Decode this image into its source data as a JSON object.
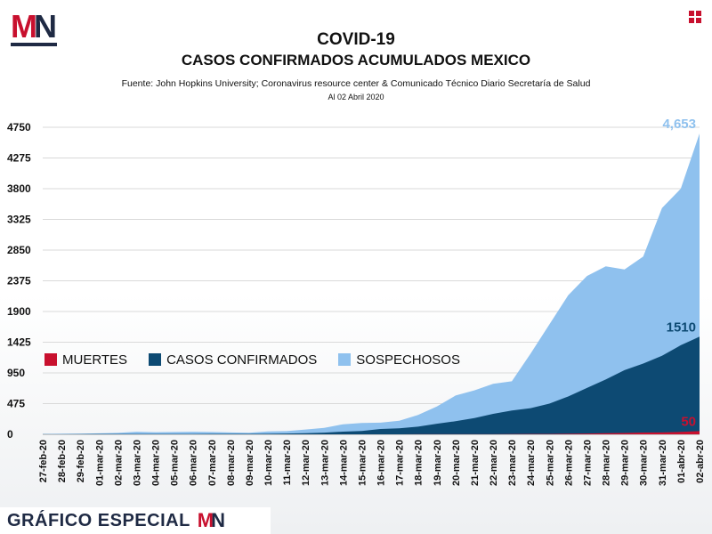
{
  "brand": {
    "logo_m": "M",
    "logo_n": "N",
    "footer_text": "GRÁFICO ESPECIAL",
    "colors": {
      "red": "#c8102e",
      "navy": "#1f2a44"
    }
  },
  "header": {
    "title_line1": "COVID-19",
    "title_line2": "CASOS CONFIRMADOS ACUMULADOS MEXICO",
    "source": "Fuente: John Hopkins University; Coronavirus resource center & Comunicado Técnico Diario Secretaría de Salud",
    "date": "Al 02 Abril 2020"
  },
  "chart_data": {
    "type": "area",
    "title": "",
    "xlabel": "",
    "ylabel": "",
    "ylim": [
      0,
      4750
    ],
    "yticks": [
      0,
      475,
      950,
      1425,
      1900,
      2375,
      2850,
      3325,
      3800,
      4275,
      4750
    ],
    "grid": true,
    "legend_position": "middle-left",
    "x": [
      "27-feb-20",
      "28-feb-20",
      "29-feb-20",
      "01-mar-20",
      "02-mar-20",
      "03-mar-20",
      "04-mar-20",
      "05-mar-20",
      "06-mar-20",
      "07-mar-20",
      "08-mar-20",
      "09-mar-20",
      "10-mar-20",
      "11-mar-20",
      "12-mar-20",
      "13-mar-20",
      "14-mar-20",
      "15-mar-20",
      "16-mar-20",
      "17-mar-20",
      "18-mar-20",
      "19-mar-20",
      "20-mar-20",
      "21-mar-20",
      "22-mar-20",
      "23-mar-20",
      "24-mar-20",
      "25-mar-20",
      "26-mar-20",
      "27-mar-20",
      "28-mar-20",
      "29-mar-20",
      "30-mar-20",
      "31-mar-20",
      "01-abr-20",
      "02-abr-20"
    ],
    "series": [
      {
        "name": "SOSPECHOSOS",
        "color": "#8fc1ee",
        "values": [
          5,
          8,
          10,
          15,
          22,
          40,
          33,
          36,
          40,
          36,
          29,
          24,
          44,
          50,
          75,
          100,
          155,
          175,
          180,
          210,
          300,
          430,
          600,
          680,
          780,
          820,
          1250,
          1700,
          2150,
          2450,
          2600,
          2550,
          2750,
          3500,
          3800,
          4653
        ]
      },
      {
        "name": "CASOS CONFIRMADOS",
        "color": "#0d4a73",
        "values": [
          1,
          2,
          4,
          5,
          5,
          5,
          5,
          5,
          5,
          7,
          7,
          7,
          8,
          12,
          16,
          26,
          41,
          53,
          82,
          93,
          118,
          164,
          203,
          251,
          316,
          367,
          405,
          475,
          585,
          717,
          848,
          993,
          1094,
          1215,
          1378,
          1510
        ]
      },
      {
        "name": "MUERTES",
        "color": "#c8102e",
        "values": [
          0,
          0,
          0,
          0,
          0,
          0,
          0,
          0,
          0,
          0,
          0,
          0,
          0,
          0,
          0,
          0,
          0,
          0,
          0,
          0,
          1,
          1,
          2,
          2,
          2,
          4,
          5,
          6,
          8,
          12,
          16,
          20,
          28,
          29,
          37,
          50
        ]
      }
    ],
    "annotations": [
      {
        "series": "SOSPECHOSOS",
        "text": "4,653"
      },
      {
        "series": "CASOS CONFIRMADOS",
        "text": "1510"
      },
      {
        "series": "MUERTES",
        "text": "50"
      }
    ]
  }
}
